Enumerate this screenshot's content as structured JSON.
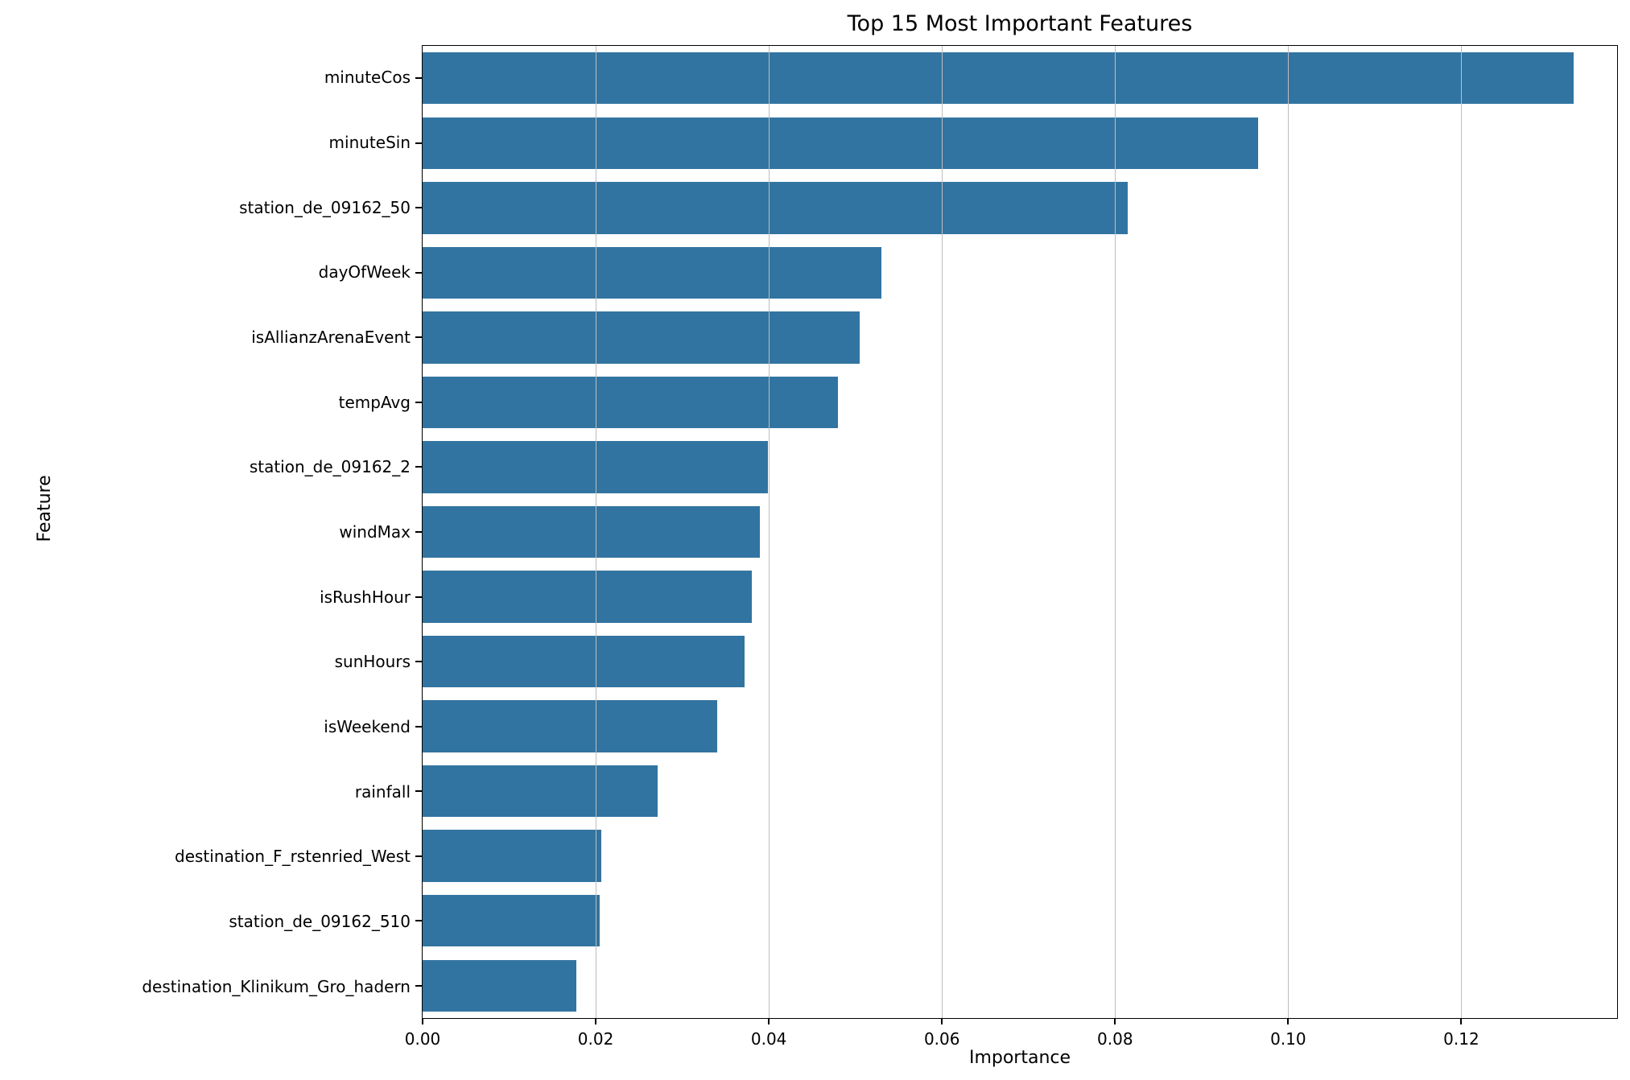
{
  "chart_data": {
    "type": "bar",
    "orientation": "horizontal",
    "title": "Top 15 Most Important Features",
    "xlabel": "Importance",
    "ylabel": "Feature",
    "categories": [
      "minuteCos",
      "minuteSin",
      "station_de_09162_50",
      "dayOfWeek",
      "isAllianzArenaEvent",
      "tempAvg",
      "station_de_09162_2",
      "windMax",
      "isRushHour",
      "sunHours",
      "isWeekend",
      "rainfall",
      "destination_F_rstenried_West",
      "station_de_09162_510",
      "destination_Klinikum_Gro_hadern"
    ],
    "values": [
      0.133,
      0.0965,
      0.0815,
      0.053,
      0.0505,
      0.048,
      0.0399,
      0.039,
      0.038,
      0.0372,
      0.034,
      0.0272,
      0.0206,
      0.0205,
      0.0178
    ],
    "xlim": [
      0,
      0.138
    ],
    "xticks": [
      0,
      0.02,
      0.04,
      0.06,
      0.08,
      0.1,
      0.12
    ],
    "xtick_labels": [
      "0.00",
      "0.02",
      "0.04",
      "0.06",
      "0.08",
      "0.10",
      "0.12"
    ],
    "bar_color": "#3274a1",
    "grid": true,
    "grid_color": "#bdbdbd",
    "legend": null,
    "bar_fraction": 0.8
  }
}
